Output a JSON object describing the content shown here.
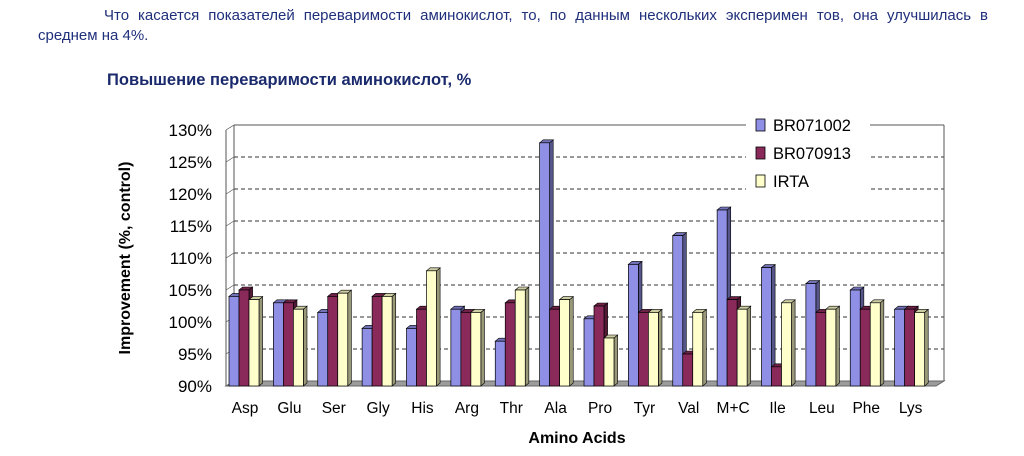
{
  "intro_text": "Что касается показателей переваримости аминокислот, то, по данным нескольких эксперимен тов, она улучшилась в среднем на 4%.",
  "chart_data": {
    "type": "bar",
    "title": "Повышение переваримости аминокислот, %",
    "xlabel": "Amino Acids",
    "ylabel": "Improvement (%, control)",
    "ylim": [
      90,
      130
    ],
    "yticks": [
      "90%",
      "95%",
      "100%",
      "105%",
      "110%",
      "115%",
      "120%",
      "125%",
      "130%"
    ],
    "grid": true,
    "legend_position": "top-right",
    "categories": [
      "Asp",
      "Glu",
      "Ser",
      "Gly",
      "His",
      "Arg",
      "Thr",
      "Ala",
      "Pro",
      "Tyr",
      "Val",
      "M+C",
      "Ile",
      "Leu",
      "Phe",
      "Lys"
    ],
    "series": [
      {
        "name": "BR071002",
        "color": "#8f8fe6",
        "values": [
          104,
          103,
          101.5,
          99,
          99,
          102,
          97,
          128,
          100.5,
          109,
          113.5,
          117.5,
          108.5,
          106,
          105,
          102
        ]
      },
      {
        "name": "BR070913",
        "color": "#8a2a5a",
        "values": [
          105,
          103,
          104,
          104,
          102,
          101.5,
          103,
          102,
          102.5,
          101.5,
          95,
          103.5,
          93,
          101.5,
          102,
          102
        ]
      },
      {
        "name": "IRTA",
        "color": "#ffffcc",
        "values": [
          103.5,
          102,
          104.5,
          104,
          108,
          101.5,
          105,
          103.5,
          97.5,
          101.5,
          101.5,
          102,
          103,
          102,
          103,
          101.5
        ]
      }
    ]
  }
}
